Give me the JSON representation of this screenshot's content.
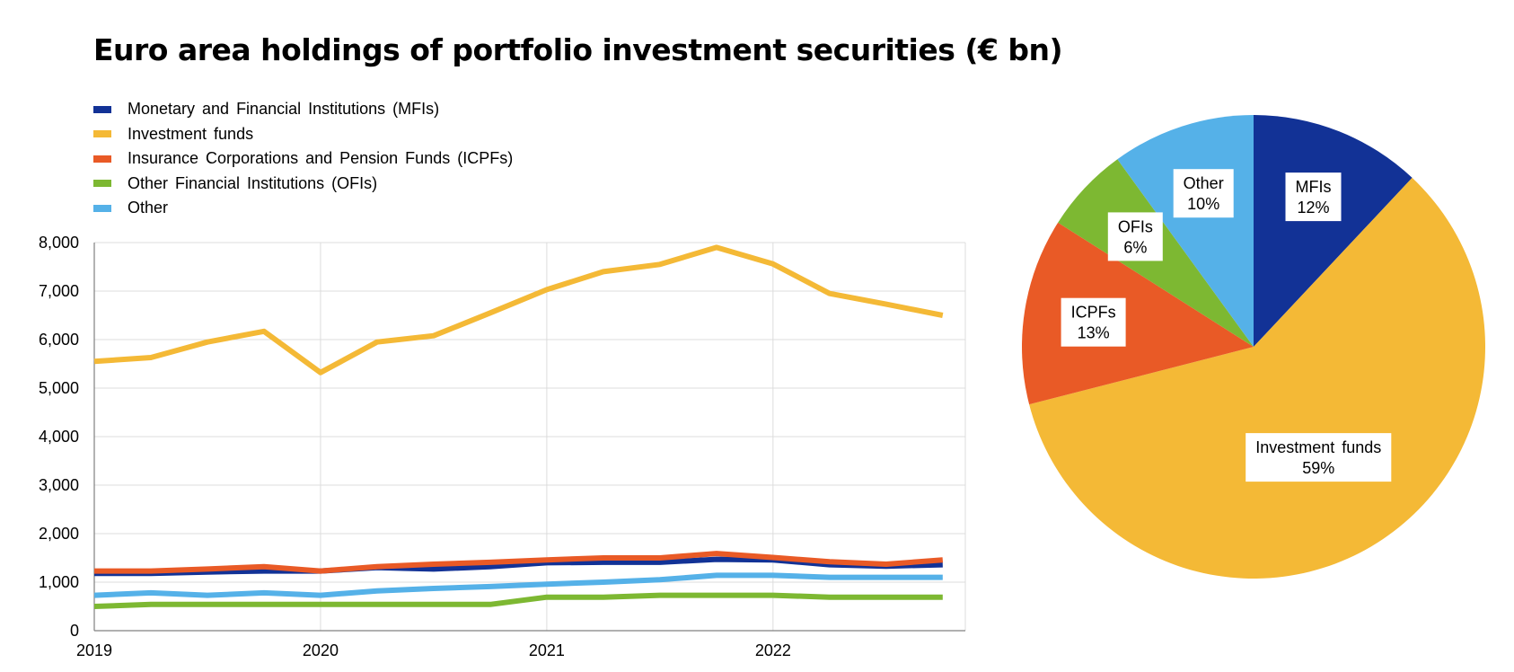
{
  "title": "Euro area holdings of portfolio investment securities (€ bn)",
  "colors": {
    "mfi": "#123296",
    "investment_funds": "#f4b936",
    "icpf": "#e95a26",
    "ofi": "#7db832",
    "other": "#55b1e8",
    "grid": "#dcdcdc"
  },
  "legend": [
    {
      "label": "Monetary and Financial Institutions (MFIs)",
      "color": "#123296"
    },
    {
      "label": "Investment funds",
      "color": "#f4b936"
    },
    {
      "label": "Insurance Corporations and Pension Funds (ICPFs)",
      "color": "#e95a26"
    },
    {
      "label": "Other Financial Institutions (OFIs)",
      "color": "#7db832"
    },
    {
      "label": "Other",
      "color": "#55b1e8"
    }
  ],
  "chart_data": [
    {
      "type": "line",
      "title": "Euro area holdings of portfolio investment securities (€ bn)",
      "x": [
        2019.0,
        2019.25,
        2019.5,
        2019.75,
        2020.0,
        2020.25,
        2020.5,
        2020.75,
        2021.0,
        2021.25,
        2021.5,
        2021.75,
        2022.0,
        2022.25,
        2022.5,
        2022.75
      ],
      "xticks": [
        2019,
        2020,
        2021,
        2022
      ],
      "xtick_labels": [
        "2019",
        "2020",
        "2021",
        "2022"
      ],
      "xlim": [
        2019.0,
        2022.85
      ],
      "ylim": [
        0,
        8000
      ],
      "yticks": [
        0,
        1000,
        2000,
        3000,
        4000,
        5000,
        6000,
        7000,
        8000
      ],
      "ytick_labels": [
        "0",
        "1,000",
        "2,000",
        "3,000",
        "4,000",
        "5,000",
        "6,000",
        "7,000",
        "8,000"
      ],
      "grid": true,
      "legend_position": "top-left",
      "series": [
        {
          "name": "Monetary and Financial Institutions (MFIs)",
          "color": "#123296",
          "values": [
            1180,
            1180,
            1210,
            1230,
            1230,
            1300,
            1270,
            1320,
            1400,
            1410,
            1410,
            1470,
            1460,
            1360,
            1330,
            1360
          ]
        },
        {
          "name": "Investment funds",
          "color": "#f4b936",
          "values": [
            5550,
            5630,
            5950,
            6170,
            5320,
            5950,
            6080,
            6550,
            7030,
            7400,
            7550,
            7900,
            7560,
            6950,
            6730,
            6500
          ]
        },
        {
          "name": "Insurance Corporations and Pension Funds (ICPFs)",
          "color": "#e95a26",
          "values": [
            1230,
            1230,
            1270,
            1320,
            1230,
            1320,
            1370,
            1410,
            1460,
            1500,
            1500,
            1590,
            1510,
            1420,
            1370,
            1460
          ]
        },
        {
          "name": "Other Financial Institutions (OFIs)",
          "color": "#7db832",
          "values": [
            500,
            540,
            540,
            540,
            540,
            540,
            540,
            540,
            690,
            690,
            730,
            730,
            730,
            690,
            690,
            690
          ]
        },
        {
          "name": "Other",
          "color": "#55b1e8",
          "values": [
            730,
            780,
            730,
            780,
            730,
            820,
            870,
            910,
            960,
            1000,
            1050,
            1140,
            1140,
            1100,
            1100,
            1100
          ]
        }
      ]
    },
    {
      "type": "pie",
      "slices": [
        {
          "name": "MFIs",
          "label": "MFIs",
          "percent_label": "12%",
          "value": 12,
          "color": "#123296"
        },
        {
          "name": "Investment funds",
          "label": "Investment funds",
          "percent_label": "59%",
          "value": 59,
          "color": "#f4b936"
        },
        {
          "name": "ICPFs",
          "label": "ICPFs",
          "percent_label": "13%",
          "value": 13,
          "color": "#e95a26"
        },
        {
          "name": "OFIs",
          "label": "OFIs",
          "percent_label": "6%",
          "value": 6,
          "color": "#7db832"
        },
        {
          "name": "Other",
          "label": "Other",
          "percent_label": "10%",
          "value": 10,
          "color": "#55b1e8"
        }
      ]
    }
  ]
}
